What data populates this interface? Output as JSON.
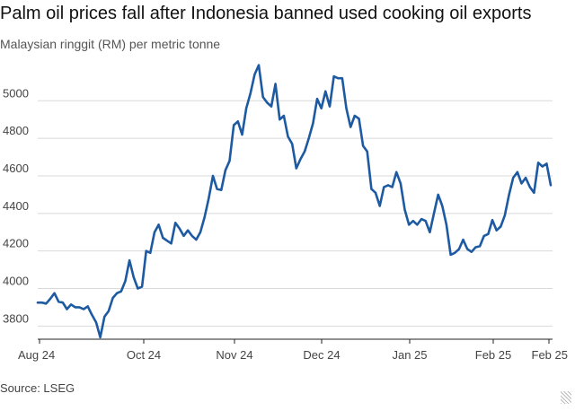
{
  "chart_data": {
    "type": "line",
    "title": "Palm oil prices fall after Indonesia banned used cooking oil exports",
    "subtitle": "Malaysian ringgit (RM) per metric tonne",
    "source": "Source: LSEG",
    "xlabel": "",
    "ylabel": "",
    "ylim": [
      3730,
      5250
    ],
    "yticks": [
      3800,
      4000,
      4200,
      4400,
      4600,
      4800,
      5000
    ],
    "xticks": [
      "Aug 24",
      "Oct 24",
      "Nov 24",
      "Dec 24",
      "Jan 25",
      "Feb 25",
      "Feb 25"
    ],
    "grid": true,
    "series": [
      {
        "color": "#1d5aa1",
        "values": [
          3925,
          3925,
          3920,
          3945,
          3975,
          3930,
          3925,
          3890,
          3915,
          3900,
          3900,
          3890,
          3905,
          3860,
          3820,
          3740,
          3850,
          3880,
          3950,
          3975,
          3985,
          4040,
          4150,
          4060,
          4000,
          4010,
          4200,
          4190,
          4300,
          4340,
          4270,
          4255,
          4240,
          4350,
          4320,
          4280,
          4310,
          4280,
          4260,
          4300,
          4380,
          4480,
          4600,
          4530,
          4525,
          4630,
          4680,
          4870,
          4890,
          4820,
          4960,
          5040,
          5140,
          5190,
          5020,
          4990,
          4970,
          5090,
          4900,
          4920,
          4810,
          4770,
          4640,
          4690,
          4730,
          4800,
          4880,
          5010,
          4960,
          5050,
          4970,
          5130,
          5120,
          5120,
          4960,
          4860,
          4920,
          4905,
          4760,
          4730,
          4530,
          4510,
          4440,
          4540,
          4550,
          4540,
          4620,
          4560,
          4420,
          4340,
          4360,
          4340,
          4370,
          4360,
          4300,
          4400,
          4500,
          4440,
          4340,
          4180,
          4190,
          4210,
          4260,
          4210,
          4195,
          4220,
          4225,
          4280,
          4290,
          4365,
          4310,
          4330,
          4390,
          4500,
          4590,
          4620,
          4560,
          4590,
          4540,
          4510,
          4670,
          4650,
          4665,
          4550
        ]
      }
    ]
  }
}
